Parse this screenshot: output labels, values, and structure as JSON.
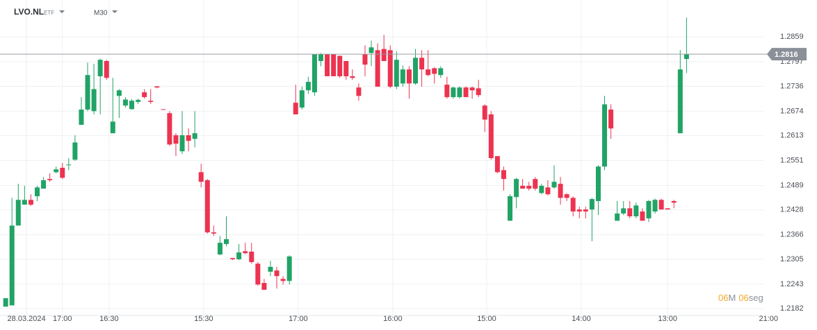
{
  "header": {
    "symbol": "LVO.NL",
    "kind": "ETF",
    "timeframe": "M30"
  },
  "countdown": {
    "minutes": "06",
    "minutes_unit": "M",
    "seconds": "06",
    "seconds_unit": "seg"
  },
  "chart_data": {
    "type": "candlestick",
    "up_color": "#21a366",
    "down_color": "#ec3350",
    "grid": true,
    "current_price": 1.2816,
    "ylim": [
      1.2165,
      1.2951
    ],
    "yticks": [
      1.2182,
      1.2243,
      1.2305,
      1.2366,
      1.2428,
      1.2489,
      1.2551,
      1.2613,
      1.2674,
      1.2736,
      1.2797,
      1.2859
    ],
    "xlim": [
      -0.9,
      120.2
    ],
    "xticks": [
      {
        "value": 3.3,
        "label": "28.03.2024"
      },
      {
        "value": 9.0,
        "label": "17:00"
      },
      {
        "value": 16.4,
        "label": "16:30"
      },
      {
        "value": 31.4,
        "label": "15:30"
      },
      {
        "value": 46.4,
        "label": "17:00"
      },
      {
        "value": 61.4,
        "label": "16:00"
      },
      {
        "value": 76.3,
        "label": "15:00"
      },
      {
        "value": 91.3,
        "label": "14:00"
      },
      {
        "value": 105,
        "label": "13:00"
      },
      {
        "value": 121,
        "label": "21:00"
      }
    ],
    "open": [
      1.2187,
      1.219,
      1.2389,
      1.2441,
      1.2453,
      1.2462,
      1.2481,
      1.2505,
      1.2522,
      1.2533,
      1.254,
      1.2553,
      1.264,
      1.2678,
      1.2674,
      1.2761,
      1.2799,
      1.2619,
      1.2712,
      1.2688,
      1.2679,
      1.2697,
      1.2721,
      1.27,
      1.2736,
      1.2679,
      1.2669,
      1.2614,
      1.2574,
      1.2614,
      1.2605,
      1.2522,
      1.2502,
      1.2372,
      1.2317,
      1.2343,
      1.2308,
      1.2305,
      1.2325,
      1.2324,
      1.2294,
      1.2246,
      1.2274,
      1.2277,
      1.2256,
      1.2251,
      1.2695,
      1.2683,
      1.2726,
      1.2721,
      1.2799,
      1.2816,
      1.2816,
      1.2812,
      1.2799,
      1.2761,
      1.2733,
      1.2816,
      1.2819,
      1.2826,
      1.2829,
      1.2826,
      1.2735,
      1.2743,
      1.2778,
      1.2743,
      1.2807,
      1.2778,
      1.2781,
      1.2764,
      1.274,
      1.2709,
      1.2709,
      1.2733,
      1.2733,
      1.2731,
      1.2688,
      1.2666,
      1.2562,
      1.2527,
      1.2401,
      1.246,
      1.2488,
      1.2488,
      1.2505,
      1.247,
      1.2484,
      1.2484,
      1.2493,
      1.2467,
      1.2458,
      1.2429,
      1.2429,
      1.2429,
      1.245,
      1.2536,
      1.2678,
      1.2401,
      1.2419,
      1.2432,
      1.2412,
      1.2424,
      1.2407,
      1.2424,
      1.2453,
      1.2432,
      1.245,
      1.2619,
      1.2804
    ],
    "high": [
      1.2208,
      1.2458,
      1.2493,
      1.2488,
      1.2467,
      1.2488,
      1.251,
      1.2519,
      1.2536,
      1.2545,
      1.2557,
      1.2614,
      1.2709,
      1.2795,
      1.2792,
      1.2805,
      1.2802,
      1.2757,
      1.2729,
      1.2709,
      1.2704,
      1.2705,
      1.2729,
      1.2729,
      1.2736,
      1.2679,
      1.2674,
      1.2619,
      1.2674,
      1.2631,
      1.2674,
      1.2543,
      1.2505,
      1.2389,
      1.2363,
      1.2412,
      1.2308,
      1.2343,
      1.2346,
      1.2346,
      1.2298,
      1.2256,
      1.2301,
      1.2286,
      1.2263,
      1.2315,
      1.274,
      1.2735,
      1.276,
      1.2816,
      1.2819,
      1.2816,
      1.2816,
      1.2812,
      1.2799,
      1.2778,
      1.2743,
      1.2838,
      1.285,
      1.2843,
      1.2864,
      1.2838,
      1.2823,
      1.2788,
      1.2786,
      1.2829,
      1.2826,
      1.2826,
      1.2783,
      1.2786,
      1.276,
      1.2735,
      1.2736,
      1.2736,
      1.2736,
      1.2752,
      1.2691,
      1.2674,
      1.2562,
      1.2536,
      1.2467,
      1.2508,
      1.2505,
      1.2498,
      1.251,
      1.2493,
      1.2502,
      1.2539,
      1.251,
      1.247,
      1.2462,
      1.2436,
      1.2436,
      1.2458,
      1.2539,
      1.2712,
      1.2691,
      1.245,
      1.245,
      1.245,
      1.2446,
      1.2432,
      1.2453,
      1.2456,
      1.2456,
      1.2432,
      1.2453,
      1.2826,
      1.2907
    ],
    "low": [
      1.2187,
      1.219,
      1.2389,
      1.2441,
      1.2438,
      1.245,
      1.2481,
      1.2498,
      1.2519,
      1.2505,
      1.2527,
      1.255,
      1.264,
      1.2674,
      1.2666,
      1.2666,
      1.2752,
      1.2619,
      1.2657,
      1.2683,
      1.2678,
      1.2692,
      1.2705,
      1.2692,
      1.2731,
      1.2678,
      1.2588,
      1.2562,
      1.2567,
      1.2574,
      1.2584,
      1.2484,
      1.2369,
      1.2363,
      1.2315,
      1.2337,
      1.2303,
      1.2303,
      1.2318,
      1.2294,
      1.2239,
      1.2229,
      1.2263,
      1.2232,
      1.2242,
      1.2242,
      1.2666,
      1.2678,
      1.2717,
      1.2712,
      1.2786,
      1.2761,
      1.2761,
      1.2757,
      1.2752,
      1.2752,
      1.27,
      1.2761,
      1.2786,
      1.2735,
      1.2799,
      1.2731,
      1.2729,
      1.2735,
      1.2705,
      1.274,
      1.2735,
      1.2761,
      1.2743,
      1.2757,
      1.2705,
      1.2705,
      1.2705,
      1.2709,
      1.2705,
      1.2709,
      1.2622,
      1.2553,
      1.2519,
      1.2476,
      1.2401,
      1.2432,
      1.2481,
      1.2476,
      1.2476,
      1.2467,
      1.2464,
      1.2481,
      1.2441,
      1.245,
      1.2412,
      1.2407,
      1.2407,
      1.235,
      1.2415,
      1.2527,
      1.2605,
      1.2401,
      1.2415,
      1.2407,
      1.2407,
      1.2401,
      1.2398,
      1.2419,
      1.2429,
      1.2429,
      1.2432,
      1.2619,
      1.2769
    ],
    "close": [
      1.2208,
      1.2389,
      1.2453,
      1.2453,
      1.2441,
      1.2484,
      1.2502,
      1.2502,
      1.2529,
      1.2508,
      1.2541,
      1.2596,
      1.2678,
      1.2764,
      1.2729,
      1.2802,
      1.2757,
      1.2648,
      1.2726,
      1.2703,
      1.27,
      1.2702,
      1.2709,
      1.2697,
      1.2733,
      1.2678,
      1.2591,
      1.2593,
      1.2614,
      1.26,
      1.2619,
      1.2498,
      1.2372,
      1.2369,
      1.2346,
      1.2355,
      1.2305,
      1.2322,
      1.232,
      1.2298,
      1.2242,
      1.2229,
      1.2286,
      1.2263,
      1.2251,
      1.2312,
      1.2666,
      1.2726,
      1.2747,
      1.2816,
      1.2816,
      1.2761,
      1.2761,
      1.2761,
      1.2761,
      1.2757,
      1.2712,
      1.279,
      1.2833,
      1.2735,
      1.2799,
      1.2735,
      1.2802,
      1.2778,
      1.2743,
      1.2807,
      1.2778,
      1.2764,
      1.2767,
      1.2781,
      1.2709,
      1.2733,
      1.2733,
      1.2709,
      1.2726,
      1.2714,
      1.2653,
      1.2557,
      1.2522,
      1.2505,
      1.2462,
      1.2505,
      1.2481,
      1.2481,
      1.2481,
      1.2488,
      1.2467,
      1.2498,
      1.2458,
      1.2458,
      1.2424,
      1.2424,
      1.2424,
      1.2455,
      1.2536,
      1.2691,
      1.2631,
      1.2419,
      1.2432,
      1.2412,
      1.2439,
      1.2401,
      1.245,
      1.2453,
      1.2429,
      1.2429,
      1.2446,
      1.2778,
      1.2816
    ]
  }
}
